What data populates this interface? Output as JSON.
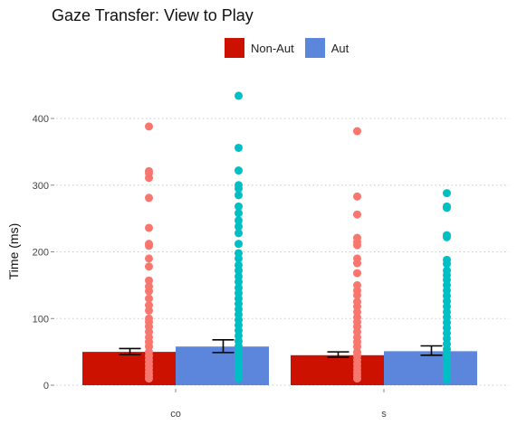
{
  "chart_data": {
    "type": "bar",
    "title": "Gaze Transfer: View to Play",
    "xlabel": "",
    "ylabel": "Time (ms)",
    "categories": [
      "co",
      "s"
    ],
    "yticks": [
      0,
      100,
      200,
      300,
      400
    ],
    "ylim": [
      -8,
      465
    ],
    "grid": "horizontal-dotted",
    "legend_position": "top",
    "series": [
      {
        "name": "Non-Aut",
        "bar_color": "#CC1100",
        "point_color": "#F8766D",
        "means": [
          50,
          45
        ],
        "error_low": [
          46,
          42
        ],
        "error_high": [
          55,
          50
        ],
        "points": [
          [
            388,
            321,
            318,
            311,
            281,
            236,
            212,
            209,
            190,
            178,
            157,
            148,
            141,
            130,
            120,
            112,
            100,
            95,
            88,
            80,
            72,
            65,
            58,
            50,
            44,
            38,
            32,
            26,
            20,
            15,
            10
          ],
          [
            381,
            283,
            256,
            221,
            215,
            210,
            190,
            183,
            168,
            150,
            142,
            135,
            125,
            118,
            110,
            102,
            95,
            88,
            80,
            72,
            65,
            58,
            50,
            44,
            38,
            32,
            26,
            20,
            15,
            10
          ]
        ]
      },
      {
        "name": "Aut",
        "bar_color": "#5B86DB",
        "point_color": "#00BFC4",
        "means": [
          58,
          51
        ],
        "error_low": [
          49,
          45
        ],
        "error_high": [
          68,
          59
        ],
        "points": [
          [
            434,
            356,
            322,
            300,
            295,
            285,
            268,
            258,
            247,
            238,
            228,
            212,
            198,
            190,
            180,
            172,
            163,
            155,
            146,
            138,
            130,
            122,
            114,
            106,
            98,
            90,
            82,
            74,
            66,
            58,
            50,
            42,
            34,
            26,
            18,
            10
          ],
          [
            288,
            268,
            266,
            225,
            222,
            188,
            182,
            172,
            165,
            158,
            150,
            142,
            134,
            126,
            118,
            110,
            102,
            94,
            86,
            78,
            70,
            62,
            54,
            46,
            38,
            30,
            22,
            14,
            8
          ]
        ]
      }
    ]
  }
}
